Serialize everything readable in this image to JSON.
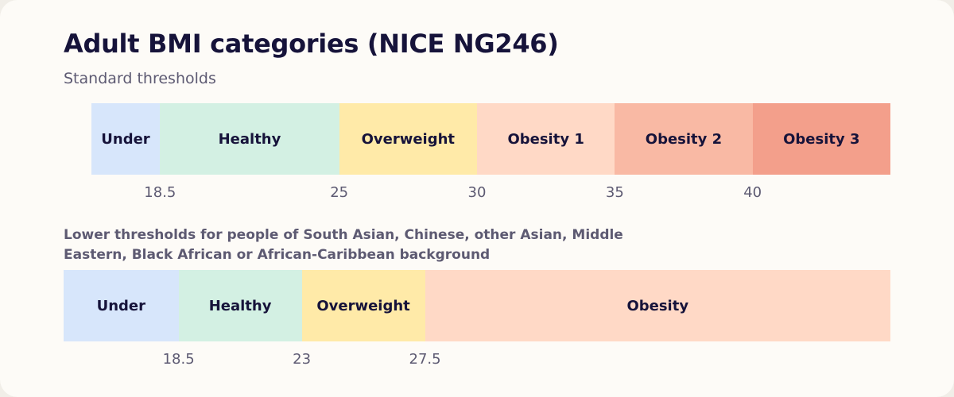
{
  "title": "Adult BMI categories (NICE NG246)",
  "subtitle": "Standard thresholds",
  "colors": {
    "under": "#d7e6fb",
    "healthy": "#d3f0e3",
    "overweight": "#ffeaa8",
    "obesity1": "#ffd9c6",
    "obesity2": "#f9b9a4",
    "obesity3": "#f39f8b"
  },
  "chart_data": [
    {
      "type": "bar",
      "name": "Standard thresholds",
      "segments": [
        {
          "label": "Under",
          "from": 16,
          "to": 18.5,
          "color": "#d7e6fb"
        },
        {
          "label": "Healthy",
          "from": 18.5,
          "to": 25,
          "color": "#d3f0e3"
        },
        {
          "label": "Overweight",
          "from": 25,
          "to": 30,
          "color": "#ffeaa8"
        },
        {
          "label": "Obesity 1",
          "from": 30,
          "to": 35,
          "color": "#ffd9c6"
        },
        {
          "label": "Obesity 2",
          "from": 35,
          "to": 40,
          "color": "#f9b9a4"
        },
        {
          "label": "Obesity 3",
          "from": 40,
          "to": 45,
          "color": "#f39f8b"
        }
      ],
      "thresholds": [
        18.5,
        25,
        30,
        35,
        40
      ],
      "xlim": [
        15,
        45
      ]
    },
    {
      "type": "bar",
      "caption": "Lower thresholds for people of South Asian, Chinese, other Asian, Middle Eastern, Black African or African-Caribbean background",
      "segments": [
        {
          "label": "Under",
          "from": 14.3,
          "to": 18.5,
          "color": "#d7e6fb"
        },
        {
          "label": "Healthy",
          "from": 18.5,
          "to": 23,
          "color": "#d3f0e3"
        },
        {
          "label": "Overweight",
          "from": 23,
          "to": 27.5,
          "color": "#ffeaa8"
        },
        {
          "label": "Obesity",
          "from": 27.5,
          "to": 45,
          "color": "#ffd9c6"
        }
      ],
      "thresholds": [
        18.5,
        23,
        27.5
      ],
      "xlim": [
        14.3,
        44.5
      ]
    }
  ]
}
